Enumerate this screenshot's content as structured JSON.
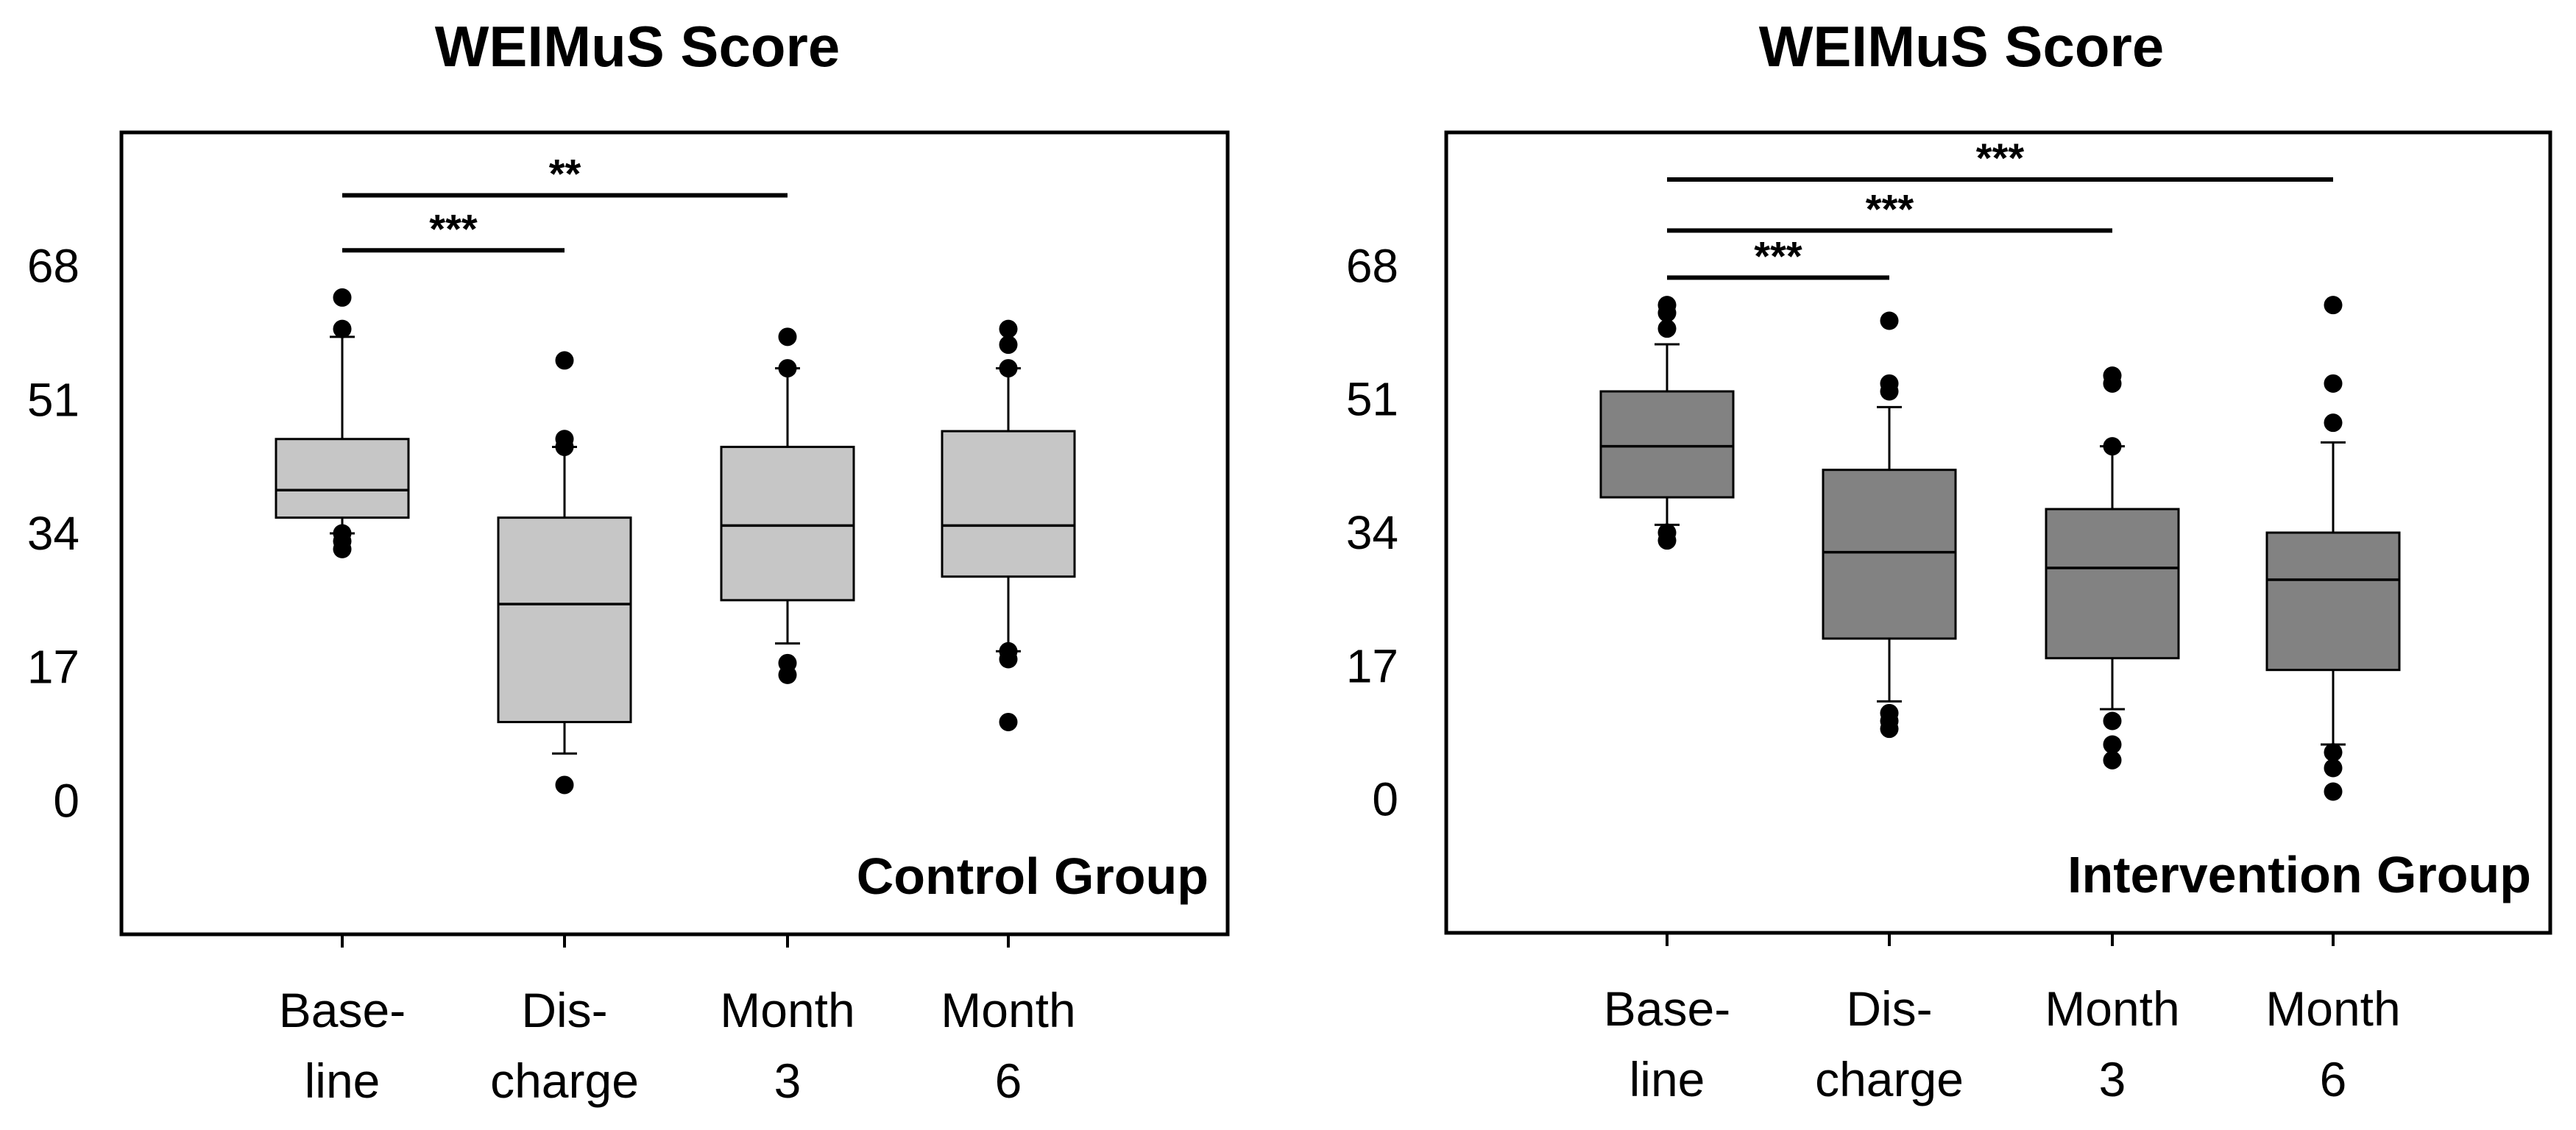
{
  "chart_data": [
    {
      "type": "box",
      "title": "WEIMuS Score",
      "group_label": "Control Group",
      "box_color": "#c6c6c6",
      "yticks": [
        0,
        17,
        34,
        51,
        68
      ],
      "ylim": [
        -17,
        85
      ],
      "categories": [
        {
          "line1": "Base-",
          "line2": "line"
        },
        {
          "line1": "Dis-",
          "line2": "charge"
        },
        {
          "line1": "Month",
          "line2": "3"
        },
        {
          "line1": "Month",
          "line2": "6"
        }
      ],
      "boxes": [
        {
          "whisker_low": 34,
          "q1": 36,
          "median": 39.5,
          "q3": 46,
          "whisker_high": 59,
          "outliers": [
            32,
            33,
            34,
            60,
            64
          ]
        },
        {
          "whisker_low": 6,
          "q1": 10,
          "median": 25,
          "q3": 36,
          "whisker_high": 45,
          "outliers": [
            2,
            45,
            46,
            56
          ]
        },
        {
          "whisker_low": 20,
          "q1": 25.5,
          "median": 35,
          "q3": 45,
          "whisker_high": 55,
          "outliers": [
            16,
            17.5,
            55,
            59
          ]
        },
        {
          "whisker_low": 19,
          "q1": 28.5,
          "median": 35,
          "q3": 47,
          "whisker_high": 55,
          "outliers": [
            10,
            18,
            19,
            55,
            58,
            60
          ]
        }
      ],
      "significance": [
        {
          "from": 0,
          "to": 1,
          "y": 70,
          "label": "***"
        },
        {
          "from": 0,
          "to": 2,
          "y": 77,
          "label": "**"
        }
      ]
    },
    {
      "type": "box",
      "title": "WEIMuS Score",
      "group_label": "Intervention Group",
      "box_color": "#828282",
      "yticks": [
        0,
        17,
        34,
        51,
        68
      ],
      "ylim": [
        -17,
        85
      ],
      "categories": [
        {
          "line1": "Base-",
          "line2": "line"
        },
        {
          "line1": "Dis-",
          "line2": "charge"
        },
        {
          "line1": "Month",
          "line2": "3"
        },
        {
          "line1": "Month",
          "line2": "6"
        }
      ],
      "boxes": [
        {
          "whisker_low": 35,
          "q1": 38.5,
          "median": 45,
          "q3": 52,
          "whisker_high": 58,
          "outliers": [
            33,
            34,
            60,
            62,
            63
          ]
        },
        {
          "whisker_low": 12.5,
          "q1": 20.5,
          "median": 31.5,
          "q3": 42,
          "whisker_high": 50,
          "outliers": [
            9,
            10,
            11,
            52,
            53,
            61
          ]
        },
        {
          "whisker_low": 11.5,
          "q1": 18,
          "median": 29.5,
          "q3": 37,
          "whisker_high": 45,
          "outliers": [
            5,
            7,
            10,
            45,
            53,
            54
          ]
        },
        {
          "whisker_low": 7,
          "q1": 16.5,
          "median": 28,
          "q3": 34,
          "whisker_high": 45.5,
          "outliers": [
            1,
            4,
            6,
            48,
            53,
            63
          ]
        }
      ],
      "significance": [
        {
          "from": 0,
          "to": 1,
          "y": 66.5,
          "label": "***"
        },
        {
          "from": 0,
          "to": 2,
          "y": 72.5,
          "label": "***"
        },
        {
          "from": 0,
          "to": 3,
          "y": 79,
          "label": "***"
        }
      ]
    }
  ]
}
